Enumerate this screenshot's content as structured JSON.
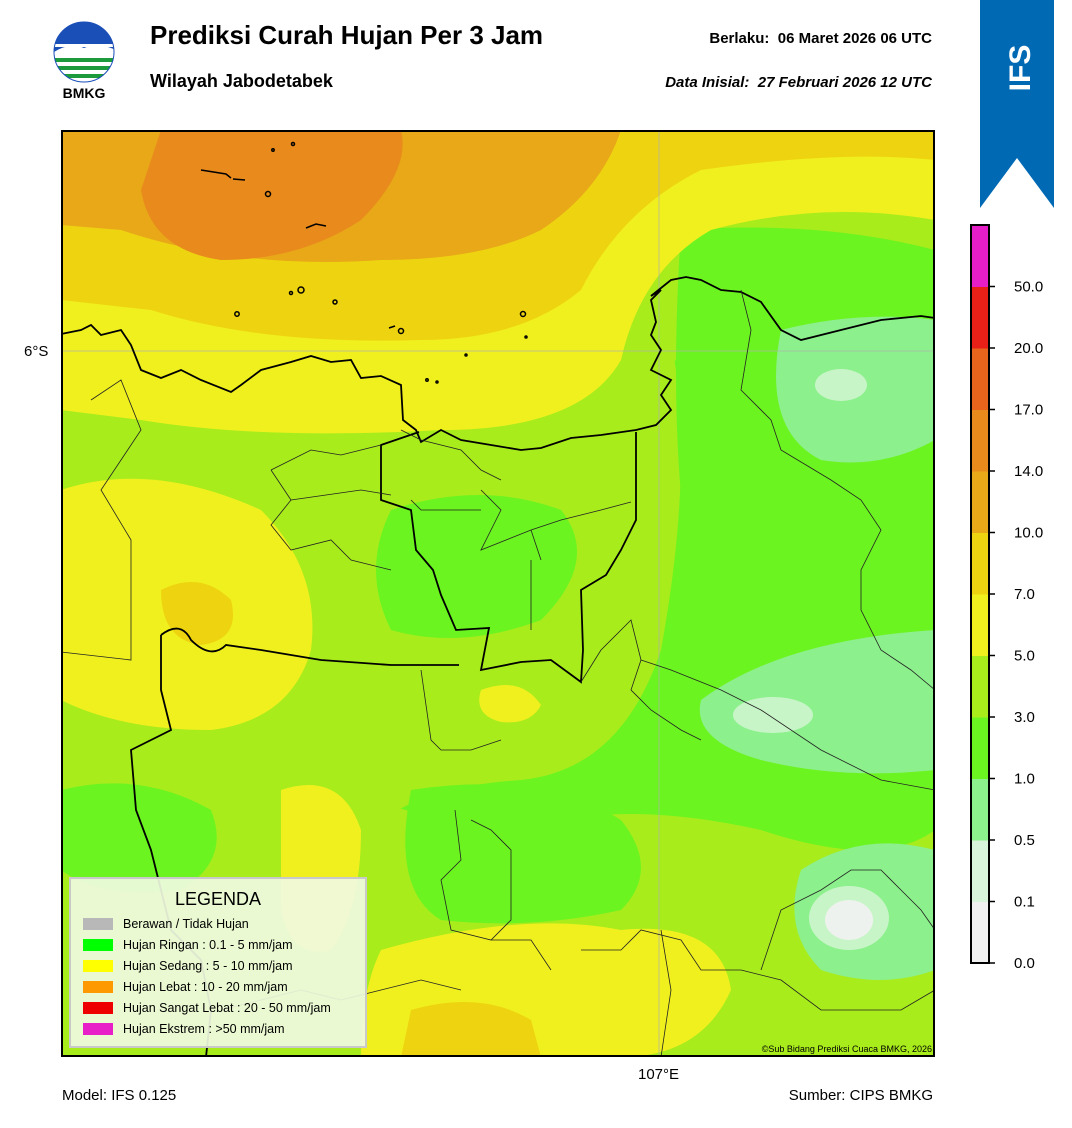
{
  "header": {
    "logo_text": "BMKG",
    "title": "Prediksi Curah Hujan Per 3 Jam",
    "subtitle": "Wilayah Jabodetabek",
    "valid_label": "Berlaku:",
    "valid_time": "06 Maret 2026 06 UTC",
    "init_label": "Data Inisial:",
    "init_time": "27 Februari 2026 12 UTC"
  },
  "badge": {
    "text": "IFS",
    "color": "#0069b4"
  },
  "map": {
    "lat_label": "6°S",
    "lon_label": "107°E",
    "copyright": "©Sub Bidang Prediksi Cuaca BMKG, 2026"
  },
  "colorbar": {
    "ticks": [
      "0.0",
      "0.1",
      "0.5",
      "1.0",
      "3.0",
      "5.0",
      "7.0",
      "10.0",
      "14.0",
      "17.0",
      "20.0",
      "50.0"
    ],
    "colors": [
      "#f0f0f0",
      "#d8f5dc",
      "#8cf08c",
      "#6bf420",
      "#a8ec1c",
      "#f0f01e",
      "#eed410",
      "#e8a818",
      "#e88a1c",
      "#e8641c",
      "#e82018",
      "#e61ec8"
    ]
  },
  "legend": {
    "title": "LEGENDA",
    "items": [
      {
        "label": "Berawan / Tidak Hujan",
        "color": "#b8b8b8"
      },
      {
        "label": "Hujan Ringan : 0.1 - 5 mm/jam",
        "color": "#00ff00"
      },
      {
        "label": "Hujan Sedang : 5 - 10 mm/jam",
        "color": "#ffff00"
      },
      {
        "label": "Hujan Lebat : 10 - 20 mm/jam",
        "color": "#ff9900"
      },
      {
        "label": "Hujan Sangat Lebat : 20 - 50 mm/jam",
        "color": "#ee0000"
      },
      {
        "label": "Hujan Ekstrem : >50 mm/jam",
        "color": "#e81ec8"
      }
    ]
  },
  "footer": {
    "model": "Model: IFS 0.125",
    "source": "Sumber: CIPS BMKG"
  }
}
